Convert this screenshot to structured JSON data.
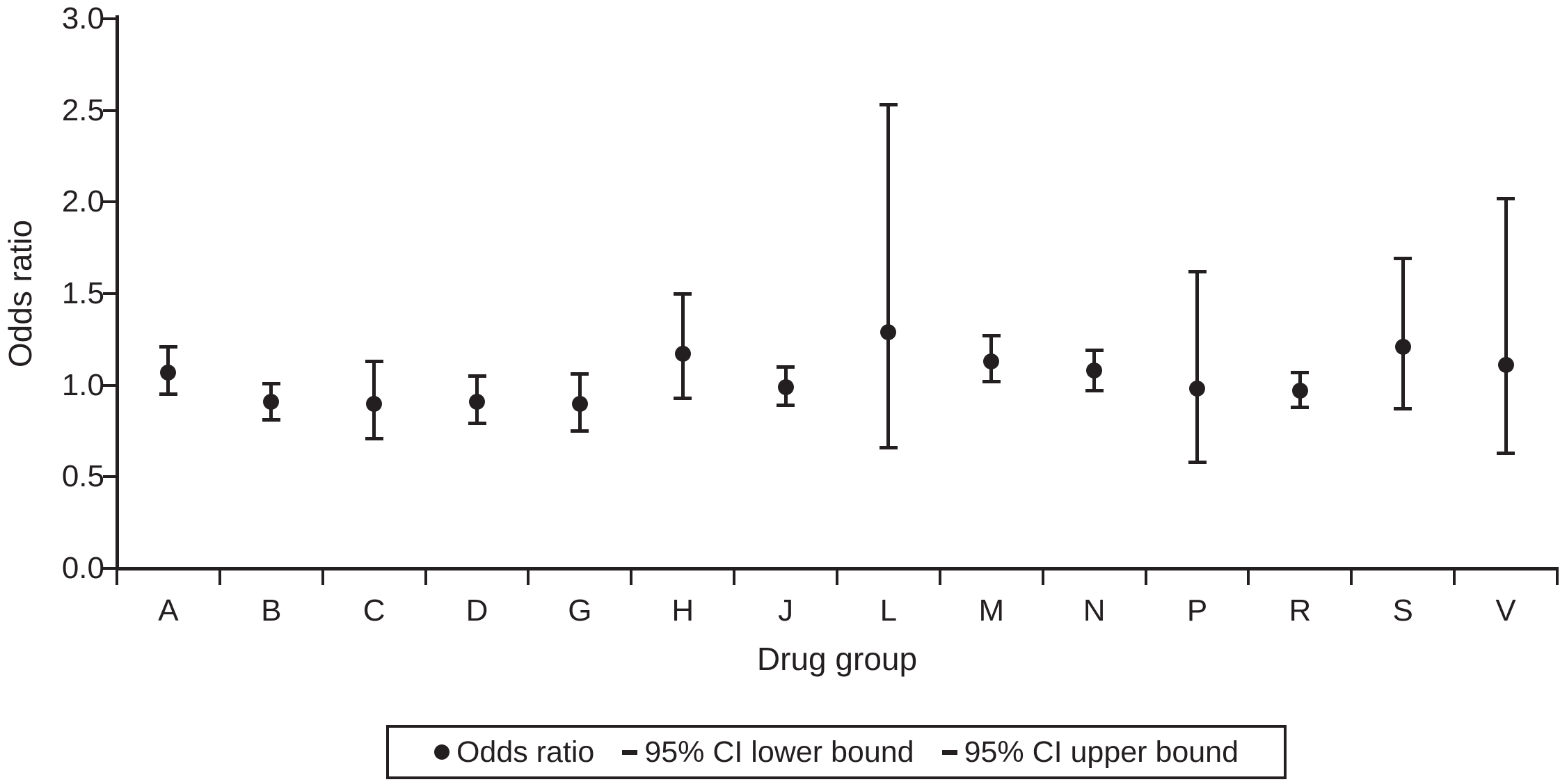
{
  "chart_data": {
    "type": "scatter",
    "subtype": "point-with-error-bars",
    "title": "",
    "xlabel": "Drug group",
    "ylabel": "Odds ratio",
    "ylim": [
      0.0,
      3.0
    ],
    "ytick_step": 0.5,
    "ytick_labels": [
      "0.0",
      "0.5",
      "1.0",
      "1.5",
      "2.0",
      "2.5",
      "3.0"
    ],
    "grid": false,
    "legend_position": "bottom",
    "marker_color": "#231f20",
    "background_color": "#ffffff",
    "categories": [
      "A",
      "B",
      "C",
      "D",
      "G",
      "H",
      "J",
      "L",
      "M",
      "N",
      "P",
      "R",
      "S",
      "V"
    ],
    "series": [
      {
        "name": "Odds ratio",
        "marker": "circle",
        "values": [
          1.07,
          0.91,
          0.9,
          0.91,
          0.9,
          1.17,
          0.99,
          1.29,
          1.13,
          1.08,
          0.98,
          0.97,
          1.21,
          1.11
        ]
      },
      {
        "name": "95% CI lower bound",
        "marker": "dash",
        "values": [
          0.95,
          0.81,
          0.71,
          0.79,
          0.75,
          0.93,
          0.89,
          0.66,
          1.02,
          0.97,
          0.58,
          0.88,
          0.87,
          0.63
        ]
      },
      {
        "name": "95% CI upper bound",
        "marker": "dash",
        "values": [
          1.21,
          1.01,
          1.13,
          1.05,
          1.06,
          1.5,
          1.1,
          2.53,
          1.27,
          1.19,
          1.62,
          1.07,
          1.69,
          2.02
        ]
      }
    ]
  }
}
